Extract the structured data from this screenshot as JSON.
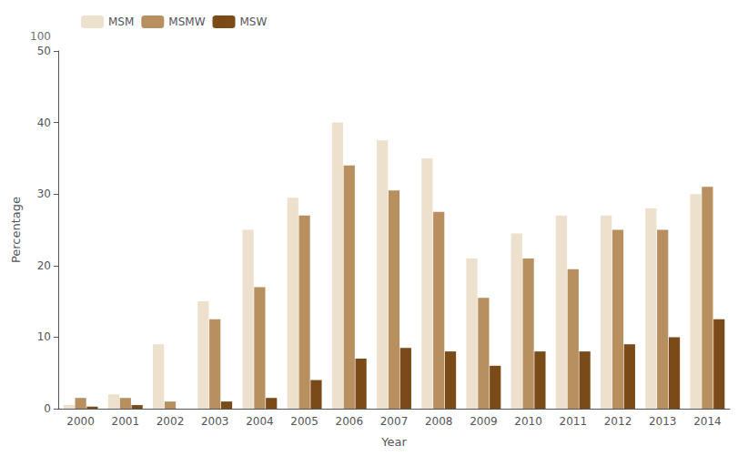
{
  "chart_data": {
    "type": "bar",
    "xlabel": "Year",
    "ylabel": "Percentage",
    "annotations": [
      "100"
    ],
    "categories": [
      "2000",
      "2001",
      "2002",
      "2003",
      "2004",
      "2005",
      "2006",
      "2007",
      "2008",
      "2009",
      "2010",
      "2011",
      "2012",
      "2013",
      "2014"
    ],
    "series": [
      {
        "name": "MSM",
        "color": "#ede0cc",
        "values": [
          0.5,
          2.0,
          9.0,
          15.0,
          25.0,
          29.5,
          40.0,
          37.5,
          35.0,
          21.0,
          24.5,
          27.0,
          27.0,
          28.0,
          30.0
        ]
      },
      {
        "name": "MSMW",
        "color": "#b89060",
        "values": [
          1.5,
          1.5,
          1.0,
          12.5,
          17.0,
          27.0,
          34.0,
          30.5,
          27.5,
          15.5,
          21.0,
          19.5,
          25.0,
          25.0,
          31.0
        ]
      },
      {
        "name": "MSW",
        "color": "#7a4b18",
        "values": [
          0.3,
          0.5,
          0.0,
          1.0,
          1.5,
          4.0,
          7.0,
          8.5,
          8.0,
          6.0,
          8.0,
          8.0,
          9.0,
          10.0,
          12.5
        ]
      }
    ],
    "ylim": [
      0,
      50
    ],
    "yticks": [
      0,
      10,
      20,
      30,
      40,
      50
    ],
    "grid": false,
    "legend": "upper left"
  }
}
